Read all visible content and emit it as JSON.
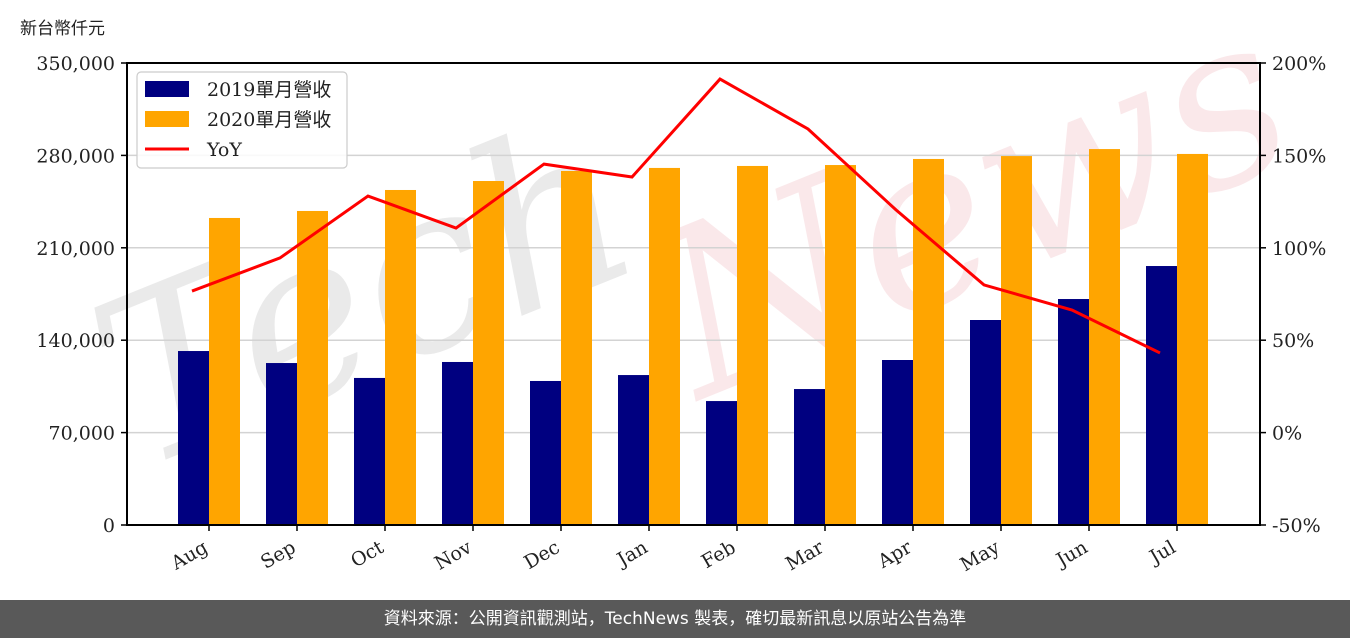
{
  "chart_data": {
    "type": "bar",
    "title": "",
    "unit_label": "新台幣仟元",
    "xlabel": "",
    "ylabel": "新台幣仟元",
    "categories": [
      "Aug",
      "Sep",
      "Oct",
      "Nov",
      "Dec",
      "Jan",
      "Feb",
      "Mar",
      "Apr",
      "May",
      "Jun",
      "Jul"
    ],
    "series": [
      {
        "name": "2019單月營收",
        "type": "bar",
        "axis": "left",
        "color": "#000080",
        "values": [
          131800,
          122700,
          111400,
          123500,
          109100,
          113600,
          93900,
          103000,
          125000,
          155300,
          171200,
          196200
        ]
      },
      {
        "name": "2020單月營收",
        "type": "bar",
        "axis": "left",
        "color": "#FFA500",
        "values": [
          232600,
          237900,
          253800,
          260600,
          268200,
          270500,
          272000,
          272700,
          277300,
          279500,
          284800,
          281100
        ]
      },
      {
        "name": "YoY",
        "type": "line",
        "axis": "right",
        "color": "#FF0000",
        "values": [
          76.6,
          94.5,
          128.0,
          110.7,
          145.3,
          138.3,
          191.3,
          164.3,
          120.5,
          79.9,
          66.3,
          43.1
        ]
      }
    ],
    "ylim": [
      0,
      350000
    ],
    "y_ticks": [
      "0",
      "70,000",
      "140,000",
      "210,000",
      "280,000",
      "350,000"
    ],
    "y_tick_values": [
      0,
      70000,
      140000,
      210000,
      280000,
      350000
    ],
    "y2lim": [
      -50,
      200
    ],
    "y2_ticks": [
      "-50%",
      "0%",
      "50%",
      "100%",
      "150%",
      "200%"
    ],
    "y2_tick_values": [
      -50,
      0,
      50,
      100,
      150,
      200
    ],
    "grid": true,
    "legend_position": "upper left",
    "legend": [
      "2019單月營收",
      "2020單月營收",
      "YoY"
    ],
    "watermark": "TechNews"
  },
  "footer": {
    "source_text": "資料來源：公開資訊觀測站，TechNews 製表，確切最新訊息以原站公告為準"
  }
}
